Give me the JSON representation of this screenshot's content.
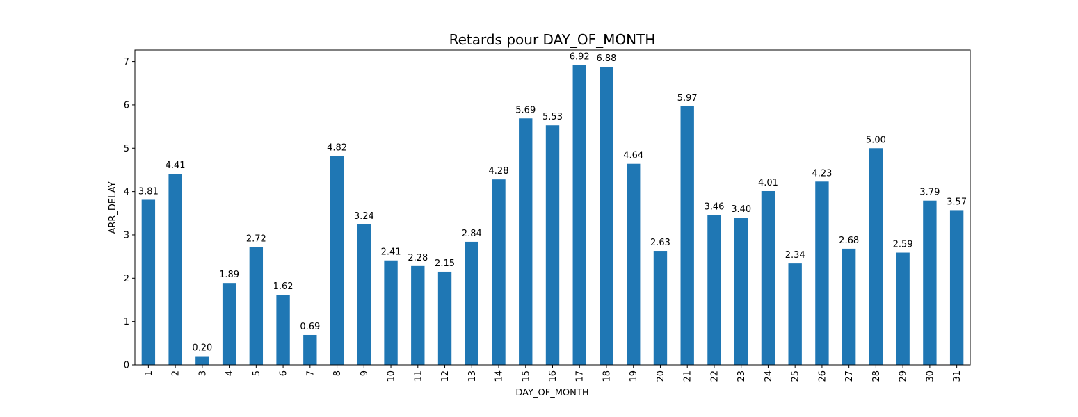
{
  "chart_data": {
    "type": "bar",
    "title": "Retards pour DAY_OF_MONTH",
    "xlabel": "DAY_OF_MONTH",
    "ylabel": "ARR_DELAY",
    "categories": [
      "1",
      "2",
      "3",
      "4",
      "5",
      "6",
      "7",
      "8",
      "9",
      "10",
      "11",
      "12",
      "13",
      "14",
      "15",
      "16",
      "17",
      "18",
      "19",
      "20",
      "21",
      "22",
      "23",
      "24",
      "25",
      "26",
      "27",
      "28",
      "29",
      "30",
      "31"
    ],
    "values": [
      3.81,
      4.41,
      0.2,
      1.89,
      2.72,
      1.62,
      0.69,
      4.82,
      3.24,
      2.41,
      2.28,
      2.15,
      2.84,
      4.28,
      5.69,
      5.53,
      6.92,
      6.88,
      4.64,
      2.63,
      5.97,
      3.46,
      3.4,
      4.01,
      2.34,
      4.23,
      2.68,
      5.0,
      2.59,
      3.79,
      3.57
    ],
    "data_labels": [
      "3.81",
      "4.41",
      "0.20",
      "1.89",
      "2.72",
      "1.62",
      "0.69",
      "4.82",
      "3.24",
      "2.41",
      "2.28",
      "2.15",
      "2.84",
      "4.28",
      "5.69",
      "5.53",
      "6.92",
      "6.88",
      "4.64",
      "2.63",
      "5.97",
      "3.46",
      "3.40",
      "4.01",
      "2.34",
      "4.23",
      "2.68",
      "5.00",
      "2.59",
      "3.79",
      "3.57"
    ],
    "yticks": [
      "0",
      "1",
      "2",
      "3",
      "4",
      "5",
      "6",
      "7"
    ],
    "ylim": [
      0,
      7.266
    ],
    "grid": false,
    "bar_color": "#1f77b4",
    "x_tick_rotation": "vertical"
  }
}
